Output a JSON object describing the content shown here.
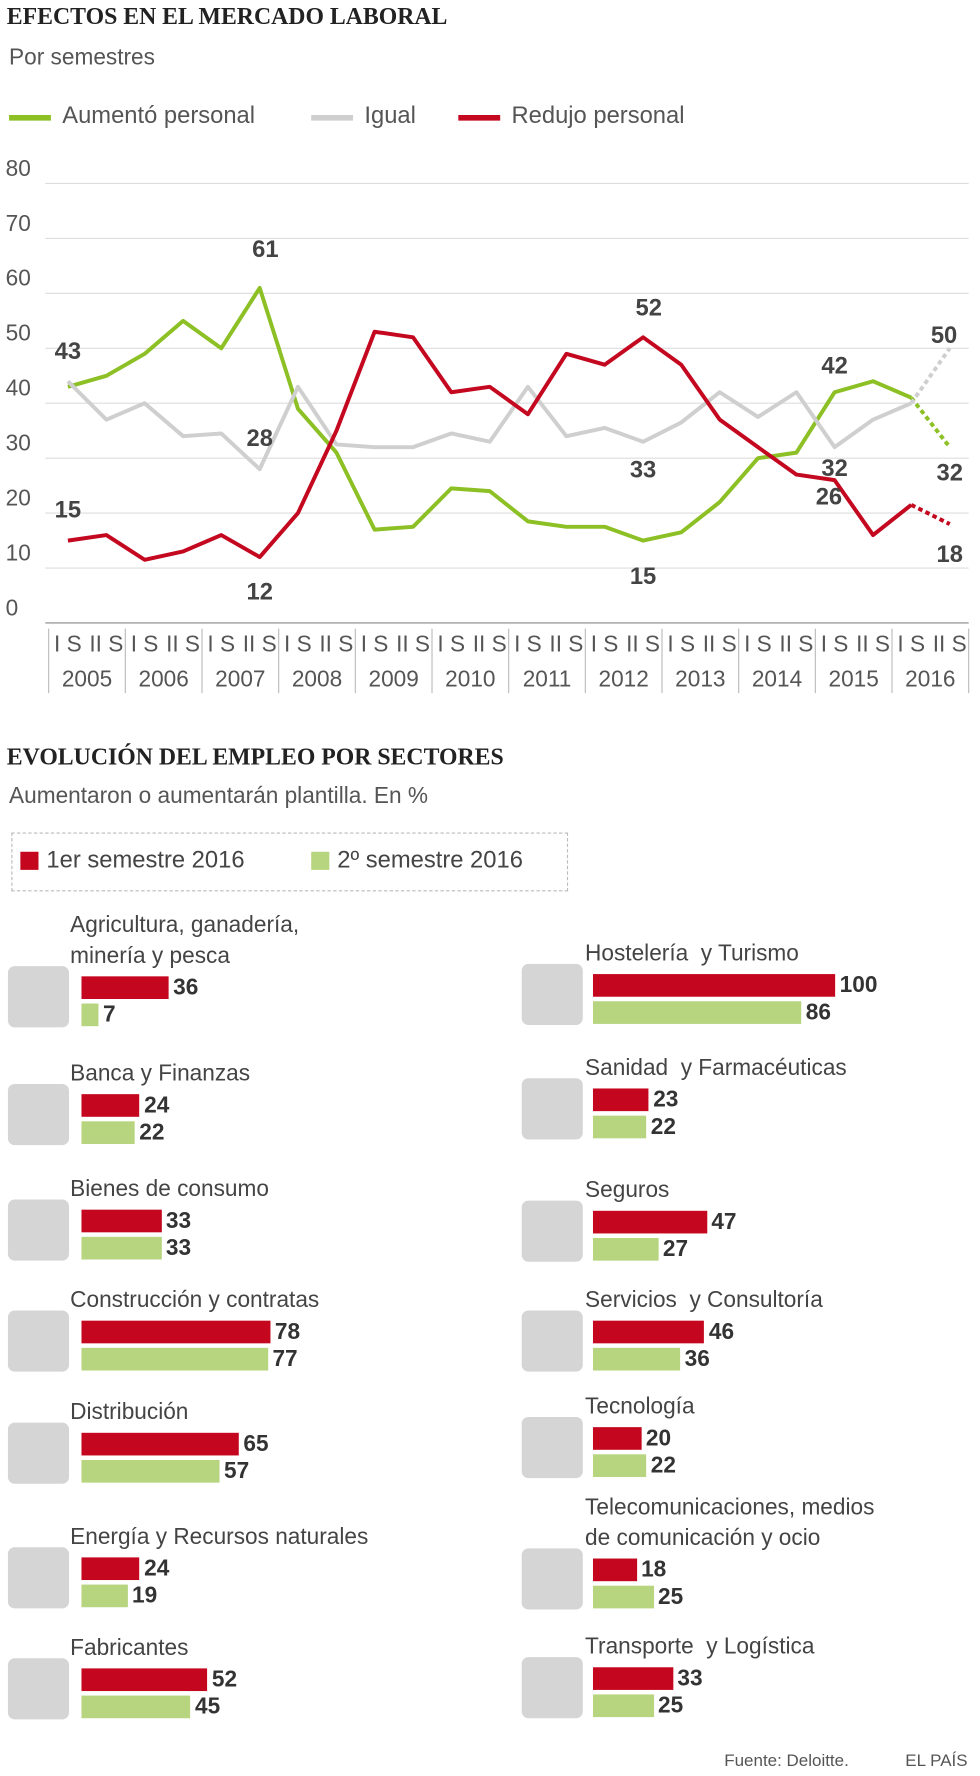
{
  "chart_data": [
    {
      "type": "line",
      "title": "EFECTOS EN EL MERCADO LABORAL",
      "subtitle": "Por semestres",
      "years": [
        "2005",
        "2006",
        "2007",
        "2008",
        "2009",
        "2010",
        "2011",
        "2012",
        "2013",
        "2014",
        "2015",
        "2016"
      ],
      "semesters": [
        "I S",
        "II S"
      ],
      "ylim": [
        0,
        80
      ],
      "yticks": [
        0,
        10,
        20,
        30,
        40,
        50,
        60,
        70,
        80
      ],
      "grid": true,
      "dashed_last_segment": true,
      "series": [
        {
          "name": "Aumentó personal",
          "color": "#8cc025",
          "values": [
            43,
            45,
            49,
            55,
            50,
            61,
            39,
            31,
            17,
            17.5,
            24.5,
            24,
            18.5,
            17.5,
            17.5,
            15,
            16.5,
            22,
            30,
            31,
            42,
            44,
            41,
            32
          ],
          "value_labels": [
            "43",
            null,
            null,
            null,
            null,
            "61",
            null,
            null,
            null,
            null,
            null,
            null,
            null,
            null,
            null,
            "15",
            null,
            null,
            null,
            null,
            "42",
            null,
            null,
            "32"
          ]
        },
        {
          "name": "Igual",
          "color": "#cfcfcf",
          "values": [
            44,
            37,
            40,
            34,
            34.5,
            28,
            43,
            32.5,
            32,
            32,
            34.5,
            33,
            43,
            34,
            35.5,
            33,
            36.5,
            42,
            37.5,
            42,
            32,
            37,
            40,
            50
          ],
          "value_labels": [
            null,
            null,
            null,
            null,
            null,
            "28",
            null,
            null,
            null,
            null,
            null,
            null,
            null,
            null,
            null,
            "33",
            null,
            null,
            null,
            null,
            "32",
            null,
            null,
            "50"
          ]
        },
        {
          "name": "Redujo personal",
          "color": "#c3081f",
          "values": [
            15,
            16,
            11.5,
            13,
            16,
            12,
            20,
            35,
            53,
            52,
            42,
            43,
            38,
            49,
            47,
            52,
            47,
            37,
            32,
            27,
            26,
            16,
            21.5,
            18
          ],
          "value_labels": [
            "15",
            null,
            null,
            null,
            null,
            "12",
            null,
            null,
            null,
            null,
            null,
            null,
            null,
            null,
            null,
            "52",
            null,
            null,
            null,
            null,
            "26",
            null,
            null,
            "18"
          ]
        }
      ]
    },
    {
      "type": "hbar",
      "title": "EVOLUCIÓN DEL EMPLEO POR SECTORES",
      "subtitle": "Aumentaron o aumentarán plantilla. En %",
      "categories": [
        "Agricultura, ganadería,\nminería y pesca",
        "Banca y Finanzas",
        "Bienes de consumo",
        "Construcción y contratas",
        "Distribución",
        "Energía y Recursos naturales",
        "Fabricantes",
        "Hostelería  y Turismo",
        "Sanidad  y Farmacéuticas",
        "Seguros",
        "Servicios  y Consultoría",
        "Tecnología",
        "Telecomunicaciones, medios\nde comunicación y ocio",
        "Transporte  y Logística"
      ],
      "series": [
        {
          "name": "1er semestre 2016",
          "color": "#c4071e",
          "values": [
            36,
            24,
            33,
            78,
            65,
            24,
            52,
            100,
            23,
            47,
            46,
            20,
            18,
            33
          ]
        },
        {
          "name": "2º semestre 2016",
          "color": "#b7d47f",
          "values": [
            7,
            22,
            33,
            77,
            57,
            19,
            45,
            86,
            22,
            27,
            36,
            22,
            25,
            25
          ]
        }
      ]
    }
  ],
  "footer": {
    "source": "Fuente: Deloitte.",
    "brand": "EL PAÍS"
  }
}
